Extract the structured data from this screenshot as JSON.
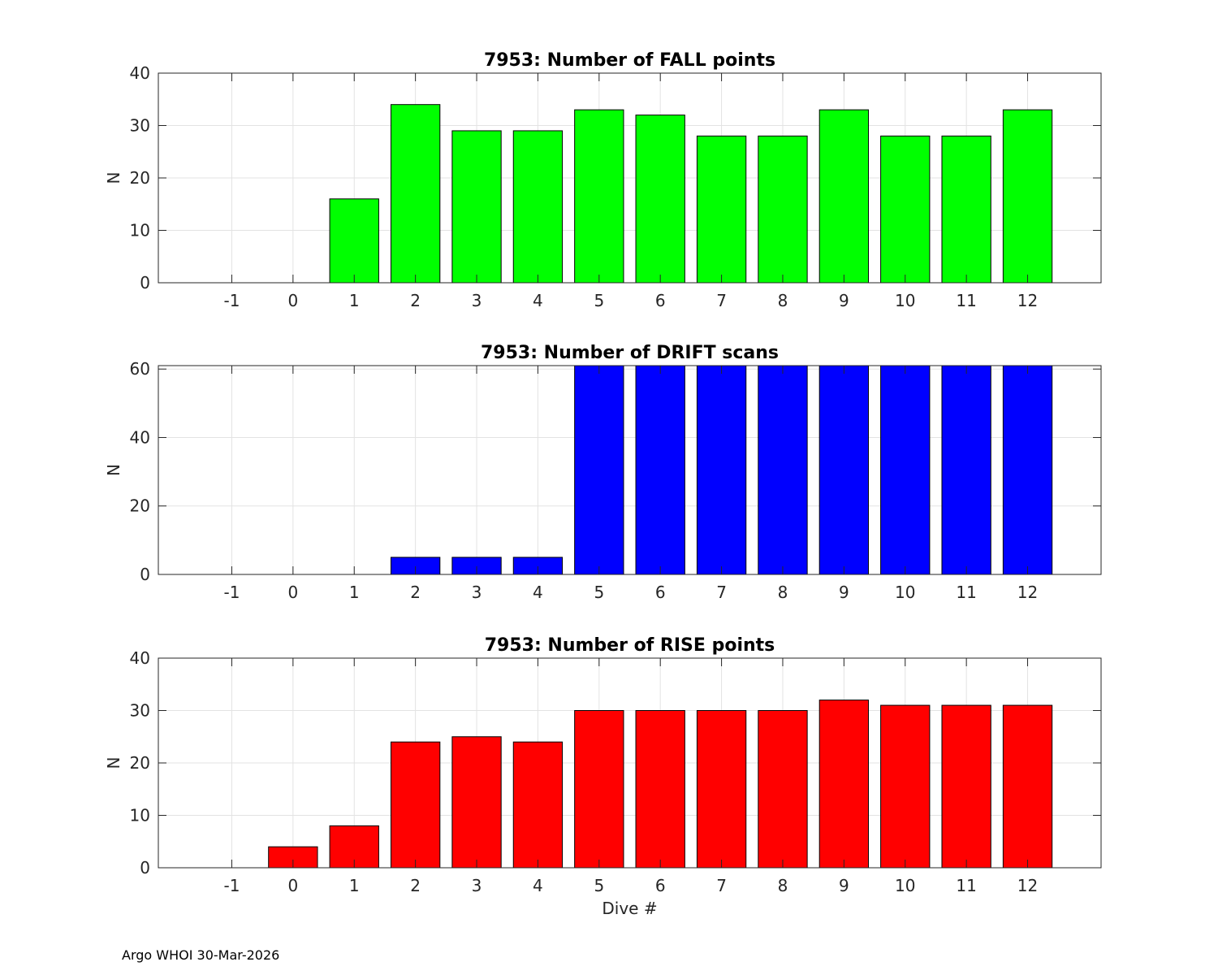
{
  "chart_data": [
    {
      "type": "bar",
      "title": "7953: Number of FALL points",
      "xlabel": "",
      "ylabel": "N",
      "categories": [
        "-1",
        "0",
        "1",
        "2",
        "3",
        "4",
        "5",
        "6",
        "7",
        "8",
        "9",
        "10",
        "11",
        "12"
      ],
      "values": [
        0,
        0,
        16,
        34,
        29,
        29,
        33,
        32,
        28,
        28,
        33,
        28,
        28,
        33
      ],
      "ylim": [
        0,
        40
      ],
      "yticks": [
        0,
        10,
        20,
        30,
        40
      ],
      "xlim": [
        -2.2,
        13.2
      ],
      "color": "#00ff00",
      "grid": true
    },
    {
      "type": "bar",
      "title": "7953: Number of DRIFT scans",
      "xlabel": "",
      "ylabel": "N",
      "categories": [
        "-1",
        "0",
        "1",
        "2",
        "3",
        "4",
        "5",
        "6",
        "7",
        "8",
        "9",
        "10",
        "11",
        "12"
      ],
      "values": [
        0,
        0,
        0,
        5,
        5,
        5,
        61,
        61,
        61,
        61,
        61,
        61,
        61,
        61
      ],
      "ylim": [
        0,
        61
      ],
      "yticks": [
        0,
        20,
        40,
        60
      ],
      "xlim": [
        -2.2,
        13.2
      ],
      "color": "#0000ff",
      "grid": true
    },
    {
      "type": "bar",
      "title": "7953: Number of RISE points",
      "xlabel": "Dive #",
      "ylabel": "N",
      "categories": [
        "-1",
        "0",
        "1",
        "2",
        "3",
        "4",
        "5",
        "6",
        "7",
        "8",
        "9",
        "10",
        "11",
        "12"
      ],
      "values": [
        0,
        4,
        8,
        24,
        25,
        24,
        30,
        30,
        30,
        30,
        32,
        31,
        31,
        31
      ],
      "ylim": [
        0,
        40
      ],
      "yticks": [
        0,
        10,
        20,
        30,
        40
      ],
      "xlim": [
        -2.2,
        13.2
      ],
      "color": "#ff0000",
      "grid": true
    }
  ],
  "footer": "Argo WHOI 30-Mar-2026"
}
